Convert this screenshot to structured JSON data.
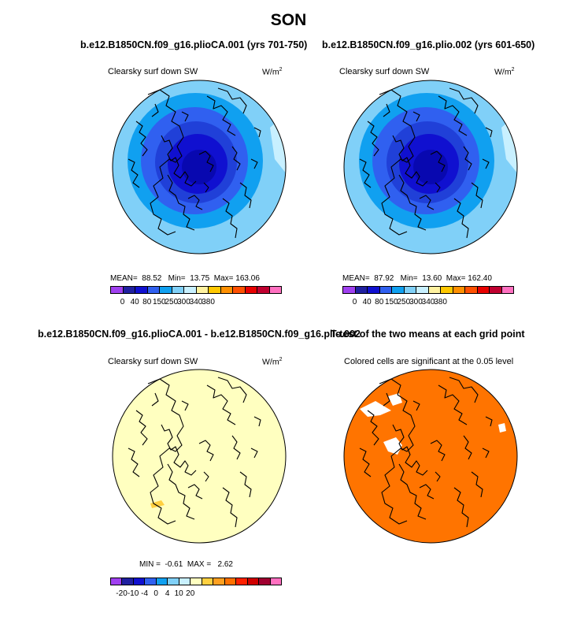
{
  "season": "SON",
  "colors": {
    "land_outline": "#000000",
    "sig_orange": "#ff7400",
    "diff_fill": "#ffffc0",
    "diff_yellow": "#ffd040"
  },
  "panels": [
    {
      "title": "b.e12.B1850CN.f09_g16.plioCA.001 (yrs 701-750)",
      "subtitle": "Clearsky surf down SW",
      "unit": "W/m",
      "unit_sup": "2",
      "stats": {
        "mean_label": "MEAN=",
        "mean": "88.52",
        "min_label": "Min=",
        "min": "13.75",
        "max_label": "Max=",
        "max": "163.06"
      }
    },
    {
      "title": "b.e12.B1850CN.f09_g16.plio.002 (yrs 601-650)",
      "subtitle": "Clearsky surf down SW",
      "unit": "W/m",
      "unit_sup": "2",
      "stats": {
        "mean_label": "MEAN=",
        "mean": "87.92",
        "min_label": "Min=",
        "min": "13.60",
        "max_label": "Max=",
        "max": "162.40"
      }
    },
    {
      "title": "b.e12.B1850CN.f09_g16.plioCA.001 - b.e12.B1850CN.f09_g16.plio.002",
      "subtitle": "Clearsky surf down SW",
      "unit": "W/m",
      "unit_sup": "2",
      "stats": {
        "min_label": "MIN =",
        "min": "-0.61",
        "max_label": "MAX =",
        "max": "2.62"
      }
    },
    {
      "title": "T-test of the two means at each grid point",
      "subtitle": "Colored cells are significant at the 0.05 level"
    }
  ],
  "chart_data": [
    {
      "type": "heatmap",
      "projection": "north-polar-stereographic",
      "title": "b.e12.B1850CN.f09_g16.plioCA.001 (yrs 701-750)",
      "variable": "Clearsky surf down SW",
      "units": "W/m2",
      "mean": 88.52,
      "min": 13.75,
      "max": 163.06,
      "colorbar": {
        "levels": [
          0,
          40,
          80,
          150,
          250,
          300,
          340,
          380
        ],
        "colors": [
          "#a040f0",
          "#2020a0",
          "#1010d0",
          "#3060f0",
          "#10a0f0",
          "#80d0f8",
          "#c8f0ff",
          "#fff2a0",
          "#ffc800",
          "#ff9000",
          "#ff5000",
          "#e80000",
          "#c00030",
          "#ff70c0"
        ]
      }
    },
    {
      "type": "heatmap",
      "projection": "north-polar-stereographic",
      "title": "b.e12.B1850CN.f09_g16.plio.002 (yrs 601-650)",
      "variable": "Clearsky surf down SW",
      "units": "W/m2",
      "mean": 87.92,
      "min": 13.6,
      "max": 162.4,
      "colorbar": {
        "levels": [
          0,
          40,
          80,
          150,
          250,
          300,
          340,
          380
        ],
        "colors": [
          "#a040f0",
          "#2020a0",
          "#1010d0",
          "#3060f0",
          "#10a0f0",
          "#80d0f8",
          "#c8f0ff",
          "#fff2a0",
          "#ffc800",
          "#ff9000",
          "#ff5000",
          "#e80000",
          "#c00030",
          "#ff70c0"
        ]
      }
    },
    {
      "type": "heatmap",
      "projection": "north-polar-stereographic",
      "title": "b.e12.B1850CN.f09_g16.plioCA.001 - b.e12.B1850CN.f09_g16.plio.002",
      "variable": "Clearsky surf down SW",
      "units": "W/m2",
      "min": -0.61,
      "max": 2.62,
      "colorbar": {
        "levels": [
          -20,
          -10,
          -4,
          0,
          4,
          10,
          20
        ],
        "colors": [
          "#a040f0",
          "#2020a0",
          "#1010d0",
          "#3060f0",
          "#10a0f0",
          "#80d0f8",
          "#c8f0ff",
          "#ffffc0",
          "#ffd040",
          "#ffa020",
          "#ff7000",
          "#ff2000",
          "#d00000",
          "#a00030",
          "#ff70c0"
        ]
      }
    },
    {
      "type": "heatmap",
      "projection": "north-polar-stereographic",
      "title": "T-test of the two means at each grid point",
      "variable": "Colored cells are significant at the 0.05 level"
    }
  ]
}
